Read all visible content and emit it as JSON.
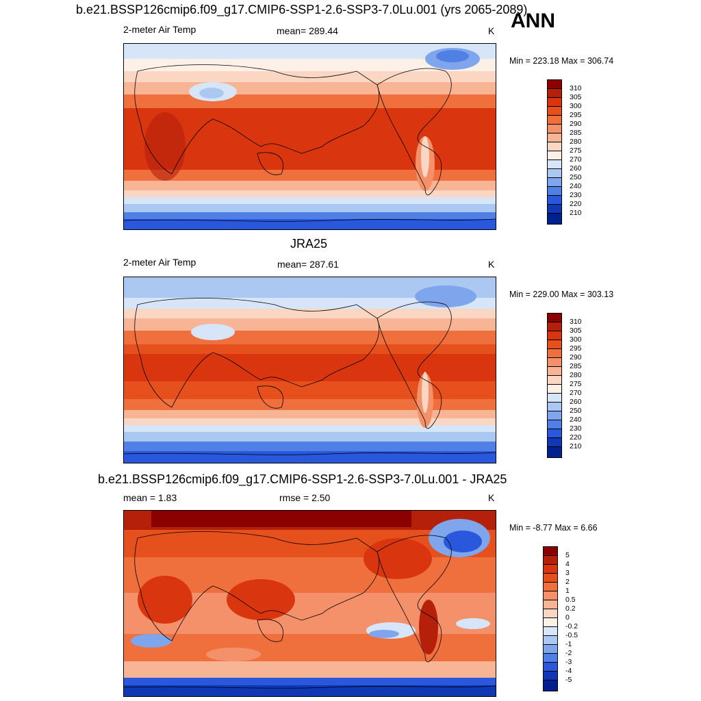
{
  "header": {
    "case_title": "b.e21.BSSP126cmip6.f09_g17.CMIP6-SSP1-2.6-SSP3-7.0Lu.001 (yrs 2065-2089)",
    "season": "ANN"
  },
  "panels": [
    {
      "variable": "2-meter Air Temp",
      "stat": "mean= 289.44",
      "units": "K",
      "minmax": "Min = 223.18 Max = 306.74",
      "title": ""
    },
    {
      "title": "JRA25",
      "variable": "2-meter Air Temp",
      "stat": "mean= 287.61",
      "units": "K",
      "minmax": "Min = 229.00 Max = 303.13"
    },
    {
      "title": "b.e21.BSSP126cmip6.f09_g17.CMIP6-SSP1-2.6-SSP3-7.0Lu.001 - JRA25",
      "variable": "mean =   1.83",
      "stat": "rmse =   2.50",
      "units": "K",
      "minmax": "Min =  -8.77 Max =   6.66"
    }
  ],
  "colorbars": {
    "temperature": {
      "labels": [
        "310",
        "305",
        "300",
        "295",
        "290",
        "285",
        "280",
        "275",
        "270",
        "260",
        "250",
        "240",
        "230",
        "220",
        "210"
      ],
      "colors": [
        "#8b0000",
        "#b5200a",
        "#d9360f",
        "#e6501c",
        "#ef6f3d",
        "#f4916a",
        "#f8b596",
        "#fbd6c2",
        "#fdf0e6",
        "#d6e6f8",
        "#abc8f2",
        "#7fa6ec",
        "#5080e6",
        "#2a58dc",
        "#1038b4",
        "#002090"
      ]
    },
    "difference": {
      "labels": [
        "5",
        "4",
        "3",
        "2",
        "1",
        "0.5",
        "0.2",
        "0",
        "-0.2",
        "-0.5",
        "-1",
        "-2",
        "-3",
        "-4",
        "-5"
      ],
      "colors": [
        "#8b0000",
        "#b5200a",
        "#d9360f",
        "#e6501c",
        "#ef6f3d",
        "#f4916a",
        "#f8b596",
        "#fbd6c2",
        "#fdf0e6",
        "#d6e6f8",
        "#abc8f2",
        "#7fa6ec",
        "#5080e6",
        "#2a58dc",
        "#1038b4",
        "#002090"
      ]
    }
  }
}
